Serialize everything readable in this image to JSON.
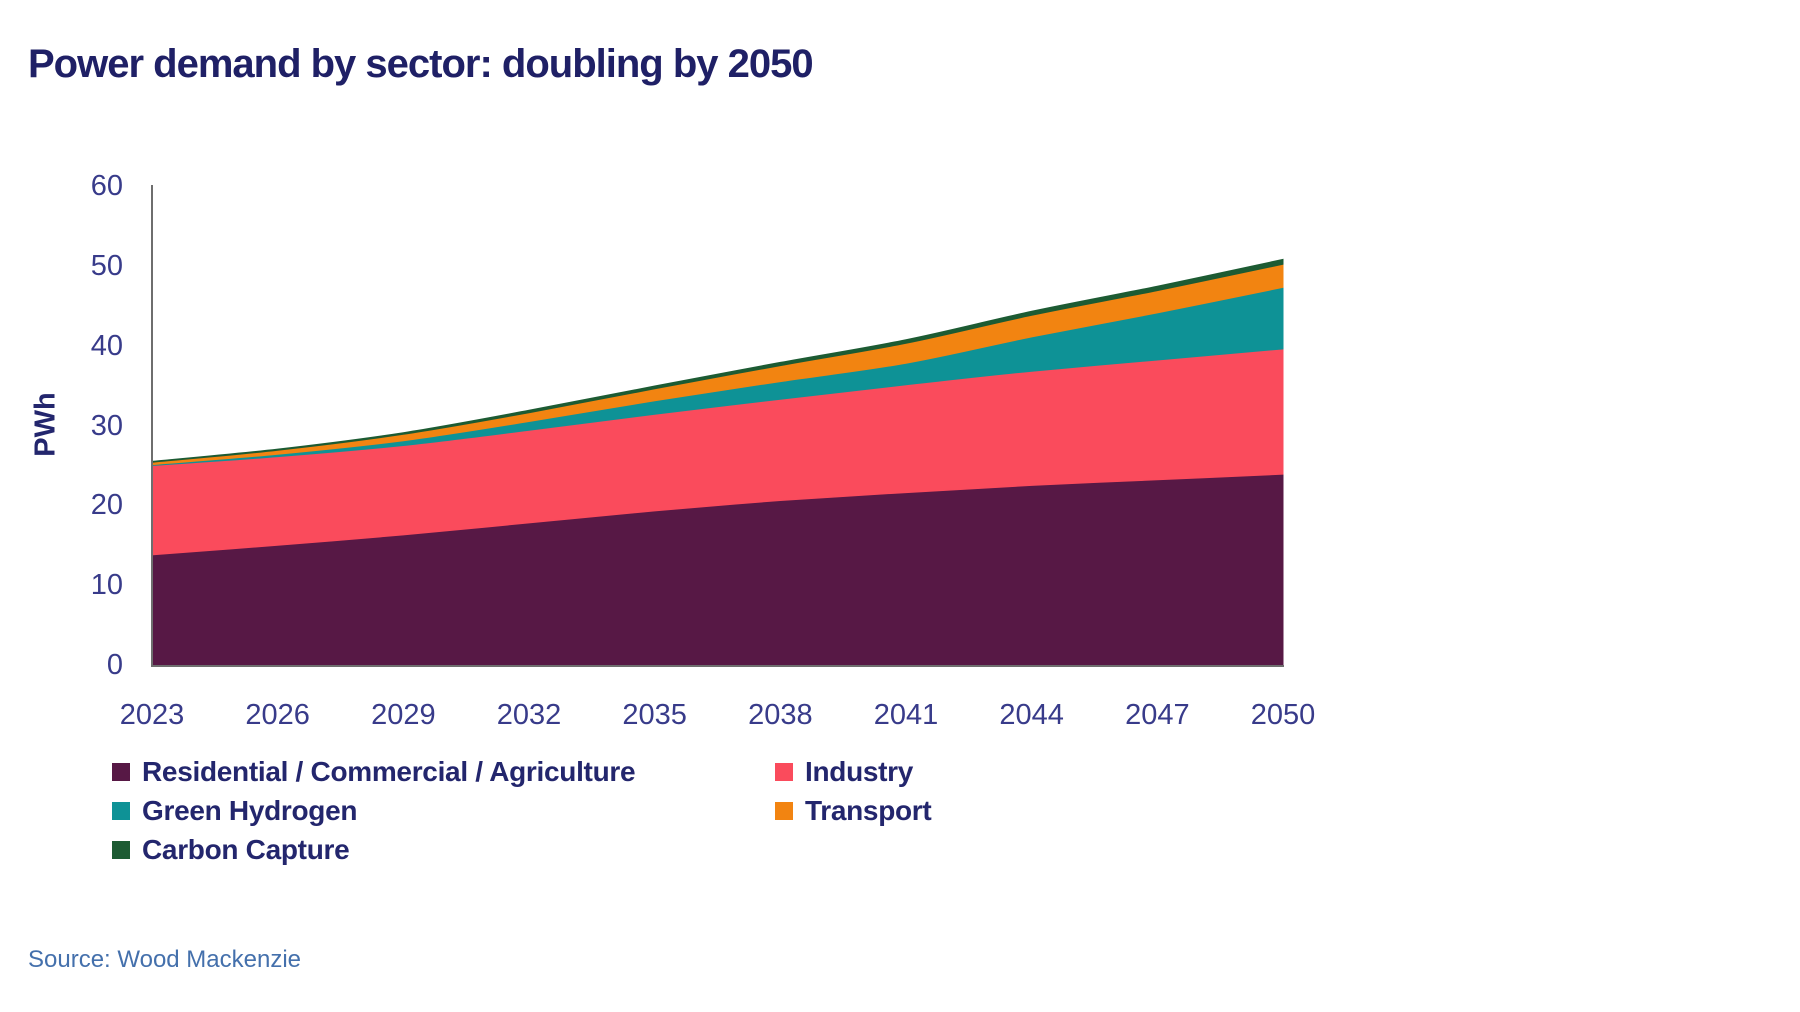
{
  "title": "Power demand by sector: doubling by 2050",
  "source": "Source: Wood Mackenzie",
  "colors": {
    "title_text": "#1F2066",
    "tick_text": "#383B8A",
    "legend_text": "#23266D",
    "source_text": "#4470AC",
    "axis_line": "#6E6E6E",
    "background": "#FFFFFF"
  },
  "chart_data": {
    "type": "area",
    "stacked": true,
    "title": "Power demand by sector: doubling by 2050",
    "xlabel": "",
    "ylabel": "PWh",
    "ylim": [
      0,
      60
    ],
    "yticks": [
      0,
      10,
      20,
      30,
      40,
      50,
      60
    ],
    "grid": false,
    "legend_position": "bottom",
    "legend_columns": 2,
    "categories": [
      2023,
      2026,
      2029,
      2032,
      2035,
      2038,
      2041,
      2044,
      2047,
      2050
    ],
    "units": "PWh",
    "series": [
      {
        "name": "Residential / Commercial / Agriculture",
        "color": "#571845",
        "values": [
          13.8,
          15.0,
          16.3,
          17.8,
          19.3,
          20.6,
          21.6,
          22.5,
          23.2,
          23.9
        ]
      },
      {
        "name": "Industry",
        "color": "#FA4B5C",
        "values": [
          11.2,
          11.1,
          11.2,
          11.6,
          12.1,
          12.7,
          13.5,
          14.3,
          15.0,
          15.7
        ]
      },
      {
        "name": "Green Hydrogen",
        "color": "#0E9296",
        "values": [
          0.1,
          0.3,
          0.6,
          1.1,
          1.7,
          2.2,
          2.7,
          4.3,
          5.9,
          7.7
        ]
      },
      {
        "name": "Transport",
        "color": "#F28411",
        "values": [
          0.3,
          0.5,
          0.8,
          1.1,
          1.5,
          2.0,
          2.5,
          2.7,
          2.8,
          2.9
        ]
      },
      {
        "name": "Carbon Capture",
        "color": "#1D5B33",
        "values": [
          0.1,
          0.15,
          0.2,
          0.3,
          0.35,
          0.4,
          0.45,
          0.5,
          0.55,
          0.6
        ]
      }
    ]
  }
}
